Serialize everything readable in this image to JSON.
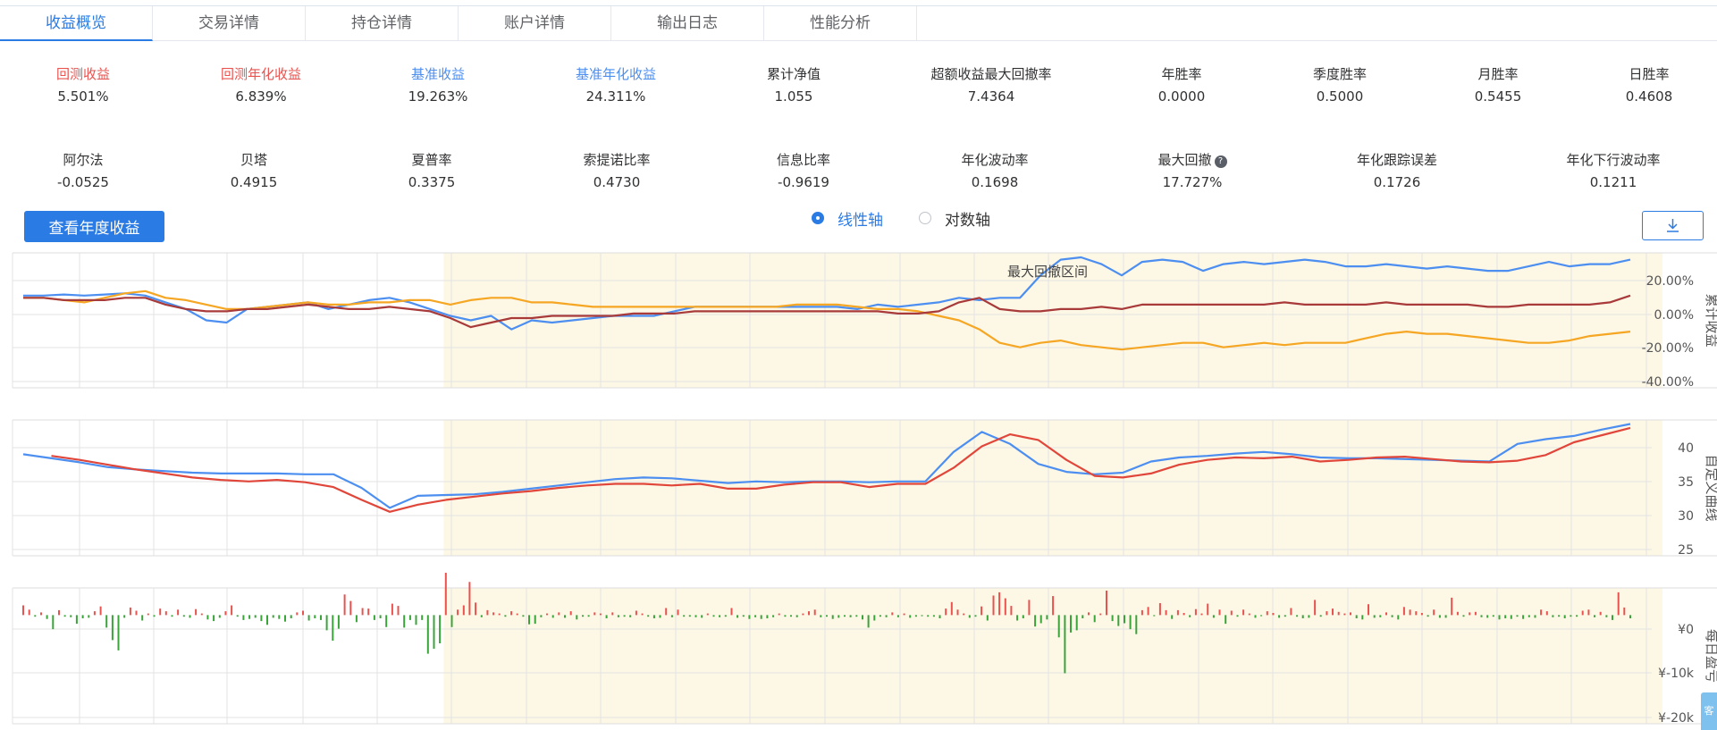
{
  "tabs": [
    {
      "label": "收益概览",
      "active": true
    },
    {
      "label": "交易详情",
      "active": false
    },
    {
      "label": "持仓详情",
      "active": false
    },
    {
      "label": "账户详情",
      "active": false
    },
    {
      "label": "输出日志",
      "active": false
    },
    {
      "label": "性能分析",
      "active": false
    }
  ],
  "metrics_row1": [
    {
      "label": "回测收益",
      "value": "5.501%",
      "color": "#e8534f"
    },
    {
      "label": "回测年化收益",
      "value": "6.839%",
      "color": "#e8534f"
    },
    {
      "label": "基准收益",
      "value": "19.263%",
      "color": "#4c8ff0"
    },
    {
      "label": "基准年化收益",
      "value": "24.311%",
      "color": "#4c8ff0"
    },
    {
      "label": "累计净值",
      "value": "1.055"
    },
    {
      "label": "超额收益最大回撤率",
      "value": "7.4364"
    },
    {
      "label": "年胜率",
      "value": "0.0000"
    },
    {
      "label": "季度胜率",
      "value": "0.5000"
    },
    {
      "label": "月胜率",
      "value": "0.5455"
    },
    {
      "label": "日胜率",
      "value": "0.4608"
    }
  ],
  "metrics_row2": [
    {
      "label": "阿尔法",
      "value": "-0.0525"
    },
    {
      "label": "贝塔",
      "value": "0.4915"
    },
    {
      "label": "夏普率",
      "value": "0.3375"
    },
    {
      "label": "索提诺比率",
      "value": "0.4730"
    },
    {
      "label": "信息比率",
      "value": "-0.9619"
    },
    {
      "label": "年化波动率",
      "value": "0.1698"
    },
    {
      "label": "最大回撤",
      "value": "17.727%",
      "icon": "question-icon"
    },
    {
      "label": "年化跟踪误差",
      "value": "0.1726"
    },
    {
      "label": "年化下行波动率",
      "value": "0.1211"
    }
  ],
  "controls": {
    "year_button": "查看年度收益",
    "linear_axis": "线性轴",
    "log_axis": "对数轴",
    "selected_axis": "linear",
    "download_icon": "download-icon"
  },
  "colors": {
    "accent": "#2a7be4",
    "strategy": "#4c8ff0",
    "benchmark": "#f5a623",
    "excess": "#a83a3a",
    "custom_red": "#e0463a",
    "shade": "#fdf7e6",
    "bar_up": "#e8534f",
    "bar_down": "#3aa43a"
  },
  "side_tab": "客",
  "chart_data": [
    {
      "type": "line",
      "ylabel": "累计收益",
      "ylim": [
        -40,
        20
      ],
      "y_ticks": [
        "20.00%",
        "0.00%",
        "-20.00%",
        "-40.00%"
      ],
      "annotation": "最大回撤区间",
      "drawdown_range": [
        0.263,
        1.0
      ],
      "series": [
        {
          "color": "#4c8ff0",
          "values": [
            1,
            1,
            1.5,
            1,
            1.5,
            2,
            1,
            -2,
            -5,
            -10,
            -11,
            -5,
            -4,
            -3,
            -2,
            -5,
            -3,
            -1,
            0,
            -2,
            -5,
            -8,
            -10,
            -8,
            -14,
            -10,
            -11,
            -10,
            -9,
            -8,
            -8,
            -8,
            -6,
            -4,
            -4,
            -4,
            -4,
            -4,
            -4,
            -4,
            -4,
            -5,
            -3,
            -4,
            -3,
            -2,
            0,
            -1,
            0,
            0,
            10,
            17,
            18,
            15,
            10,
            16,
            17,
            16,
            12,
            15,
            16,
            15,
            16,
            17,
            16,
            14,
            14,
            15,
            14,
            13,
            14,
            13,
            12,
            12,
            14,
            16,
            14,
            15,
            15,
            17
          ]
        },
        {
          "color": "#f5a623",
          "values": [
            0,
            0,
            -1,
            -2,
            0,
            2,
            3,
            0,
            -1,
            -3,
            -5,
            -5,
            -4,
            -3,
            -2,
            -3,
            -3,
            -2,
            -2,
            -1,
            -1,
            -3,
            -1,
            0,
            0,
            -2,
            -2,
            -3,
            -4,
            -4,
            -4,
            -4,
            -4,
            -4,
            -4,
            -4,
            -4,
            -4,
            -3,
            -3,
            -3,
            -4,
            -5,
            -5,
            -6,
            -8,
            -10,
            -14,
            -20,
            -22,
            -20,
            -19,
            -21,
            -22,
            -23,
            -22,
            -21,
            -20,
            -20,
            -22,
            -21,
            -20,
            -21,
            -20,
            -20,
            -20,
            -18,
            -16,
            -15,
            -16,
            -16,
            -17,
            -18,
            -19,
            -20,
            -20,
            -19,
            -17,
            -16,
            -15
          ]
        },
        {
          "color": "#a83a3a",
          "values": [
            0,
            0,
            -1,
            -1,
            -1,
            0,
            0,
            -3,
            -5,
            -6,
            -6,
            -5,
            -5,
            -4,
            -3,
            -4,
            -5,
            -5,
            -4,
            -5,
            -6,
            -9,
            -13,
            -11,
            -9,
            -9,
            -8,
            -8,
            -8,
            -8,
            -7,
            -7,
            -7,
            -6,
            -6,
            -6,
            -6,
            -6,
            -6,
            -6,
            -6,
            -6,
            -6,
            -7,
            -7,
            -6,
            -2,
            0,
            -5,
            -6,
            -6,
            -5,
            -5,
            -4,
            -5,
            -3,
            -3,
            -3,
            -3,
            -3,
            -3,
            -3,
            -2,
            -3,
            -3,
            -3,
            -3,
            -2,
            -3,
            -3,
            -3,
            -3,
            -4,
            -4,
            -3,
            -3,
            -3,
            -3,
            -2,
            1
          ]
        }
      ]
    },
    {
      "type": "line",
      "ylabel": "自定义曲线",
      "ylim": [
        25,
        40
      ],
      "y_ticks": [
        "40",
        "35",
        "30",
        "25"
      ],
      "series": [
        {
          "color": "#4c8ff0",
          "values": [
            37.7,
            37.2,
            36.7,
            36.1,
            35.8,
            35.6,
            35.4,
            35.3,
            35.3,
            35.3,
            35.2,
            35.2,
            33.5,
            31,
            32.5,
            32.6,
            32.7,
            33,
            33.4,
            33.8,
            34.2,
            34.6,
            34.8,
            34.7,
            34.4,
            34.1,
            34.3,
            34.2,
            34.3,
            34.3,
            34.2,
            34.3,
            34.3,
            38,
            40.5,
            39,
            36.5,
            35.5,
            35.2,
            35.4,
            36.8,
            37.3,
            37.5,
            37.8,
            38,
            37.7,
            37.3,
            37.2,
            37.2,
            37.1,
            37,
            36.9,
            36.8,
            39,
            39.6,
            40,
            40.8,
            41.5
          ]
        },
        {
          "color": "#e0463a",
          "values": [
            null,
            37.5,
            37,
            36.4,
            35.8,
            35.3,
            34.8,
            34.5,
            34.3,
            34.5,
            34.2,
            33.6,
            32,
            30.5,
            31.4,
            32,
            32.4,
            32.8,
            33.1,
            33.5,
            33.8,
            34,
            34,
            33.8,
            34,
            33.4,
            33.4,
            33.9,
            34.2,
            34.2,
            33.6,
            34,
            34,
            36,
            38.7,
            40.2,
            39.5,
            37,
            35,
            34.8,
            35.3,
            36.4,
            37,
            37.3,
            37.2,
            37.4,
            36.8,
            37,
            37.3,
            37.4,
            37.1,
            36.8,
            36.7,
            36.9,
            37.6,
            39.2,
            40.1,
            41
          ]
        }
      ]
    },
    {
      "type": "bar",
      "ylabel": "每日盈亏",
      "ylim": [
        -20000,
        5000
      ],
      "y_ticks": [
        "¥0",
        "¥-10k",
        "¥-20k"
      ],
      "values": [
        1800,
        1000,
        -300,
        500,
        -700,
        -2600,
        900,
        -300,
        -400,
        -1600,
        -600,
        -500,
        700,
        1600,
        -2300,
        -4600,
        -6500,
        -500,
        1400,
        800,
        -1000,
        300,
        -300,
        1200,
        700,
        -300,
        1000,
        -300,
        -500,
        1100,
        300,
        -800,
        -1100,
        -500,
        700,
        1800,
        -300,
        -900,
        -700,
        -500,
        -1100,
        -1800,
        -500,
        -700,
        -1200,
        -600,
        500,
        800,
        -1000,
        -600,
        -900,
        -2800,
        -4700,
        -2500,
        3800,
        2600,
        -1300,
        1300,
        1200,
        -900,
        -600,
        -2200,
        2100,
        1700,
        -2300,
        -900,
        -1800,
        -900,
        -7100,
        -6200,
        -5200,
        7800,
        -2200,
        1000,
        1800,
        6100,
        2300,
        -400,
        900,
        500,
        300,
        -300,
        700,
        300,
        -300,
        -1700,
        -1600,
        -400,
        300,
        -500,
        500,
        -500,
        700,
        -800,
        -300,
        -300,
        500,
        300,
        -600,
        500,
        -400,
        -300,
        -400,
        800,
        300,
        -300,
        -600,
        -500,
        1300,
        -400,
        1000,
        -300,
        -300,
        -400,
        -500,
        300,
        -300,
        -400,
        -300,
        1300,
        -500,
        -300,
        -700,
        -400,
        -700,
        -600,
        -400,
        300,
        -300,
        -300,
        -400,
        300,
        700,
        1000,
        -400,
        -300,
        -700,
        -500,
        -300,
        -400,
        -300,
        -800,
        -2300,
        -1000,
        -300,
        -400,
        500,
        -400,
        300,
        -500,
        -300,
        -200,
        -300,
        -300,
        -600,
        1200,
        2400,
        1000,
        300,
        -500,
        -300,
        1600,
        -1000,
        3600,
        4200,
        3100,
        1700,
        -1000,
        -600,
        2800,
        -2100,
        -1500,
        -800,
        3500,
        -4100,
        -10700,
        -3200,
        -2800,
        -600,
        500,
        -1300,
        300,
        4500,
        -1100,
        -2000,
        -1500,
        -2600,
        -3500,
        900,
        1500,
        -200,
        2200,
        900,
        -700,
        900,
        400,
        -400,
        1100,
        300,
        2100,
        -500,
        1000,
        -1600,
        800,
        -300,
        1000,
        300,
        -500,
        -200,
        700,
        400,
        -500,
        -300,
        1300,
        -300,
        -600,
        -500,
        2800,
        -300,
        700,
        1200,
        600,
        300,
        500,
        -600,
        -800,
        2000,
        -500,
        -400,
        500,
        -400,
        -800,
        1500,
        1000,
        700,
        400,
        -300,
        1000,
        -500,
        -500,
        3200,
        600,
        -300,
        500,
        600,
        -400,
        -500,
        -300,
        -800,
        -600,
        -700,
        -300,
        -700,
        -400,
        -500,
        1000,
        700,
        -400,
        -300,
        -600,
        -300,
        -300,
        800,
        1000,
        -400,
        600,
        -400,
        -900,
        4200,
        1400,
        -600
      ]
    }
  ]
}
